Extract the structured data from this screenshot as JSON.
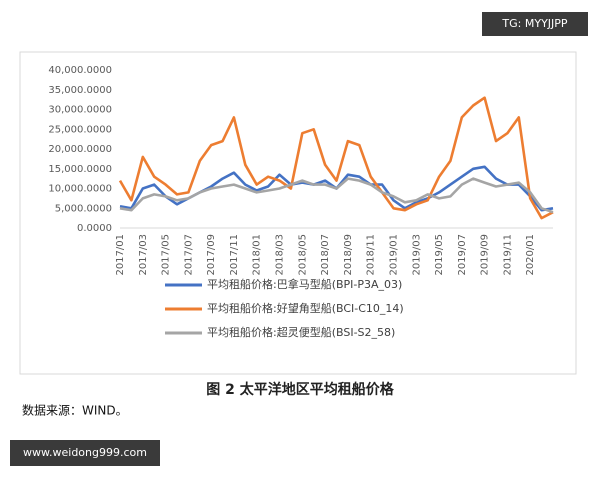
{
  "chart_data": {
    "type": "line",
    "title": "图 2  太平洋地区平均租船价格",
    "categories": [
      "2017/01",
      null,
      "2017/03",
      null,
      "2017/05",
      null,
      "2017/07",
      null,
      "2017/09",
      null,
      "2017/11",
      null,
      "2018/01",
      null,
      "2018/03",
      null,
      "2018/05",
      null,
      "2018/07",
      null,
      "2018/09",
      null,
      "2018/11",
      null,
      "2019/01",
      null,
      "2019/03",
      null,
      "2019/05",
      null,
      "2019/07",
      null,
      "2019/09",
      null,
      "2019/11",
      null,
      "2020/01",
      null,
      null
    ],
    "series": [
      {
        "name": "平均租船价格:巴拿马型船(BPI-P3A_03)",
        "color": "#4472c4",
        "values": [
          5500,
          5000,
          10000,
          11000,
          8000,
          6000,
          7500,
          9000,
          10500,
          12500,
          14000,
          11000,
          9500,
          10500,
          13500,
          11000,
          11500,
          11000,
          12000,
          10000,
          13500,
          13000,
          11000,
          11000,
          7000,
          5000,
          6500,
          7500,
          9000,
          11000,
          13000,
          15000,
          15500,
          12500,
          11000,
          11000,
          8000,
          4500,
          5000
        ]
      },
      {
        "name": "平均租船价格:好望角型船(BCI-C10_14)",
        "color": "#ed7d31",
        "values": [
          12000,
          7000,
          18000,
          13000,
          11000,
          8500,
          9000,
          17000,
          21000,
          22000,
          28000,
          16000,
          11000,
          13000,
          12000,
          10000,
          24000,
          25000,
          16000,
          12000,
          22000,
          21000,
          13000,
          9000,
          5000,
          4500,
          6000,
          7000,
          13000,
          17000,
          28000,
          31000,
          33000,
          22000,
          24000,
          28000,
          7500,
          2500,
          4000
        ]
      },
      {
        "name": "平均租船价格:超灵便型船(BSI-S2_58)",
        "color": "#a5a5a5",
        "values": [
          5000,
          4500,
          7500,
          8500,
          8000,
          7000,
          7500,
          9000,
          10000,
          10500,
          11000,
          10000,
          9000,
          9500,
          10000,
          11000,
          12000,
          11000,
          11000,
          10000,
          12500,
          12000,
          11000,
          9000,
          8000,
          6500,
          7000,
          8500,
          7500,
          8000,
          11000,
          12500,
          11500,
          10500,
          11000,
          11500,
          9000,
          5000,
          4000
        ]
      }
    ],
    "ylim": [
      0,
      40000
    ],
    "yticks": [
      {
        "value": 0,
        "label": "0.0000"
      },
      {
        "value": 5000,
        "label": "5,000.0000"
      },
      {
        "value": 10000,
        "label": "10,000.0000"
      },
      {
        "value": 15000,
        "label": "15,000.0000"
      },
      {
        "value": 20000,
        "label": "20,000.0000"
      },
      {
        "value": 25000,
        "label": "25,000.0000"
      },
      {
        "value": 30000,
        "label": "30,000.0000"
      },
      {
        "value": 35000,
        "label": "35,000.0000"
      },
      {
        "value": 40000,
        "label": "40,000.0000"
      }
    ],
    "grid": false
  },
  "source": "数据来源：WIND。",
  "watermark_top": "TG: MYYJJPP",
  "watermark_bottom": "www.weidong999.com"
}
